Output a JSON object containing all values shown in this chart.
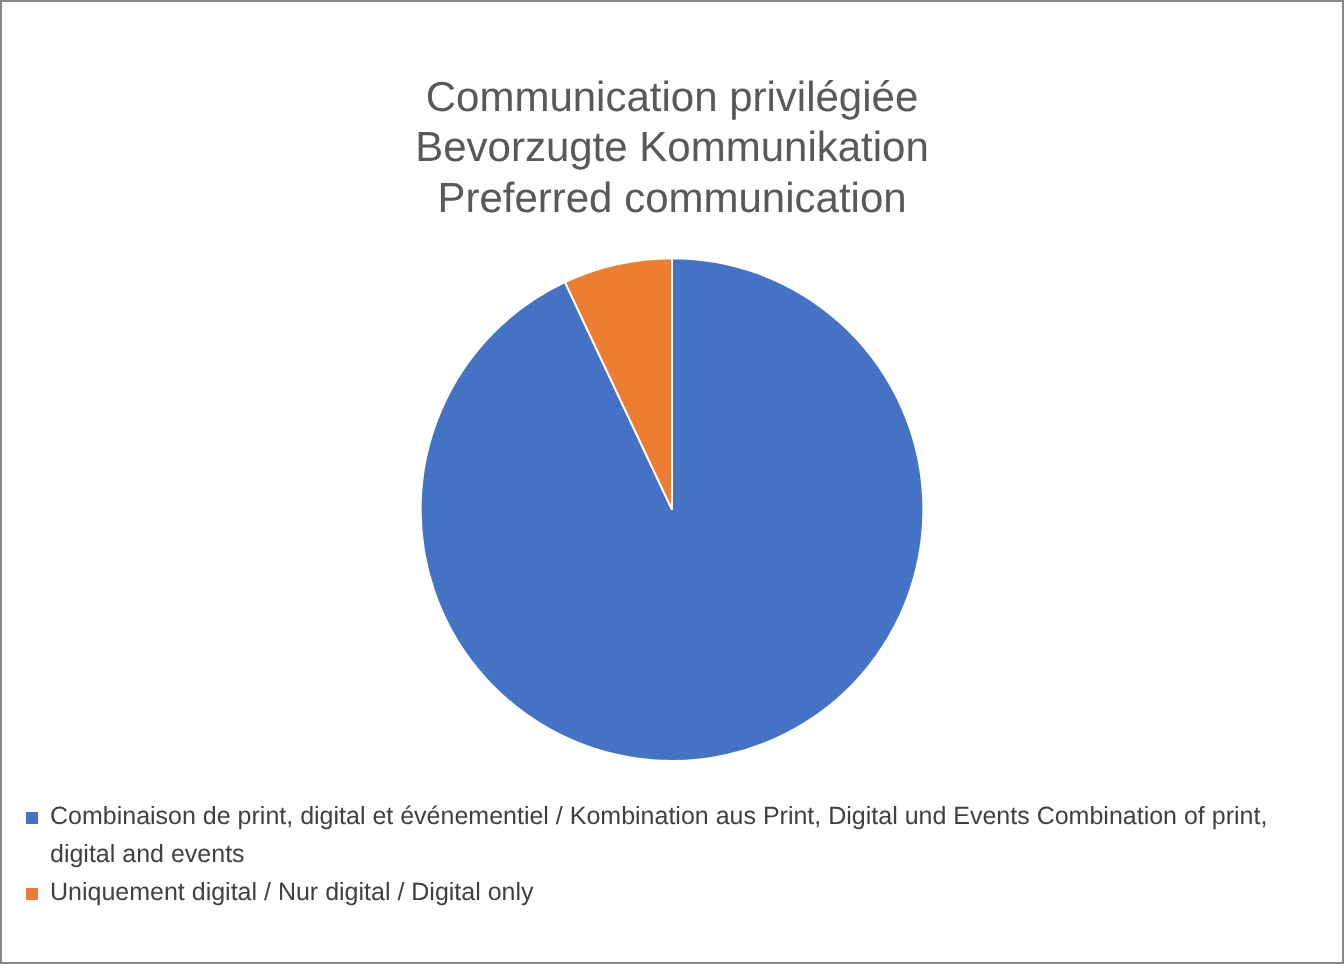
{
  "chart_data": {
    "type": "pie",
    "title": "Communication privilégiée\nBevorzugte Kommunikation\nPreferred communication",
    "categories": [
      "Combinaison de print, digital et événementiel / Kombination aus Print, Digital und Events Combination of print, digital and events",
      "Uniquement digital / Nur digital / Digital only"
    ],
    "values": [
      93,
      7
    ],
    "colors": [
      "#4472c4",
      "#ed7d31"
    ],
    "legend": "bottom"
  }
}
